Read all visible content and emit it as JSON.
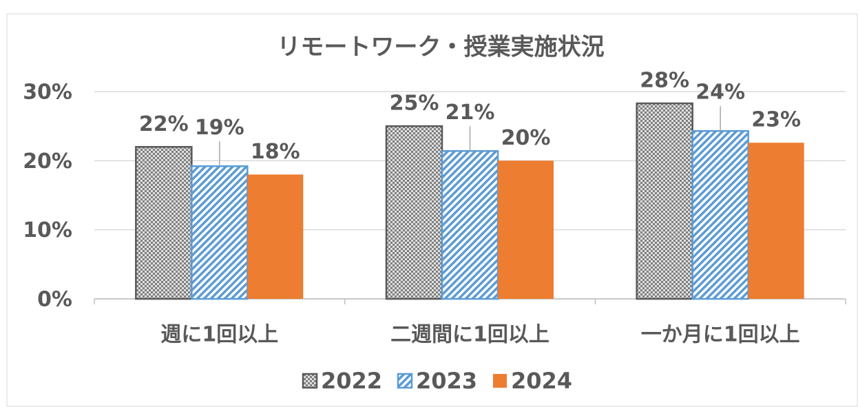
{
  "chart_data": {
    "type": "bar",
    "title": "リモートワーク・授業実施状況",
    "categories": [
      "週に1回以上",
      "二週間に1回以上",
      "一か月に1回以上"
    ],
    "series": [
      {
        "name": "2022",
        "color": "#7f7f7f",
        "values": [
          22,
          25,
          28.3
        ],
        "value_labels": [
          "22%",
          "25%",
          "28%"
        ]
      },
      {
        "name": "2023",
        "color": "#5b9bd5",
        "values": [
          19.2,
          21.4,
          24.3
        ],
        "value_labels": [
          "19%",
          "21%",
          "24%"
        ]
      },
      {
        "name": "2024",
        "color": "#ed7d31",
        "values": [
          18,
          20,
          22.6
        ],
        "value_labels": [
          "18%",
          "20%",
          "23%"
        ]
      }
    ],
    "ylim": [
      0,
      30
    ],
    "yticks": [
      {
        "value": 0,
        "label": "0%"
      },
      {
        "value": 10,
        "label": "10%"
      },
      {
        "value": 20,
        "label": "20%"
      },
      {
        "value": 30,
        "label": "30%"
      }
    ],
    "grid": true,
    "legend": "bottom"
  }
}
